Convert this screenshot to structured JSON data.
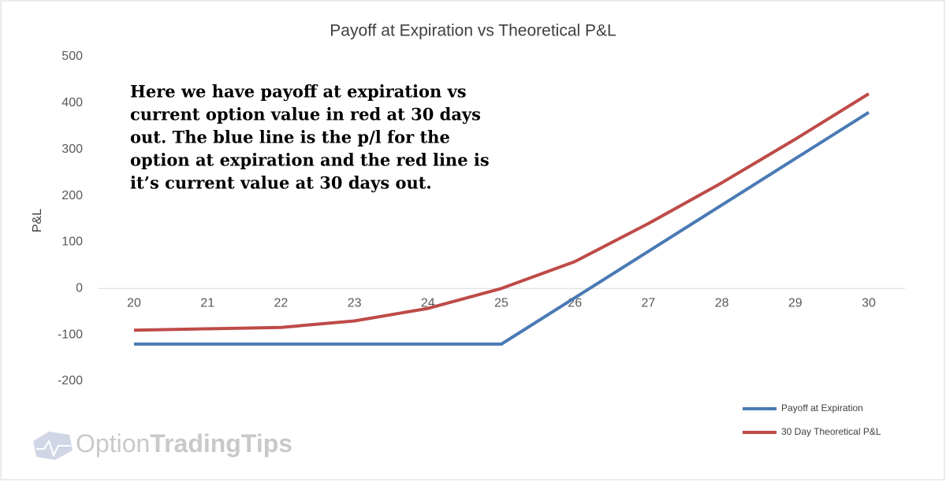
{
  "chart_data": {
    "type": "line",
    "title": "Payoff at Expiration vs Theoretical P&L",
    "y_label": "P&L",
    "annotation": [
      "Here we have payoff at expiration vs",
      "current option value in red at 30 days",
      "out. The blue line is the p/l for the",
      "option at expiration and the red line is",
      "it’s current value at 30 days out."
    ],
    "watermark": [
      "Option",
      "TradingTips"
    ],
    "x": [
      20,
      21,
      22,
      23,
      24,
      25,
      26,
      27,
      28,
      29,
      30
    ],
    "series": [
      {
        "name": "Payoff at Expiration",
        "color": "#4a7ab5",
        "values": [
          -120,
          -120,
          -120,
          -120,
          -120,
          -120,
          -20,
          80,
          180,
          280,
          380
        ]
      },
      {
        "name": "30 Day Theoretical P&L",
        "color": "#be4b48",
        "values": [
          -90,
          -87,
          -84,
          -70,
          -43,
          0,
          58,
          140,
          228,
          322,
          420
        ]
      }
    ],
    "xlim": [
      20,
      30
    ],
    "xticks": [
      20,
      21,
      22,
      23,
      24,
      25,
      26,
      27,
      28,
      29,
      30
    ],
    "ylim": [
      -200,
      500
    ],
    "yticks": [
      -200,
      -100,
      0,
      100,
      200,
      300,
      400,
      500
    ],
    "grid": false,
    "legend": "bottom-right"
  }
}
